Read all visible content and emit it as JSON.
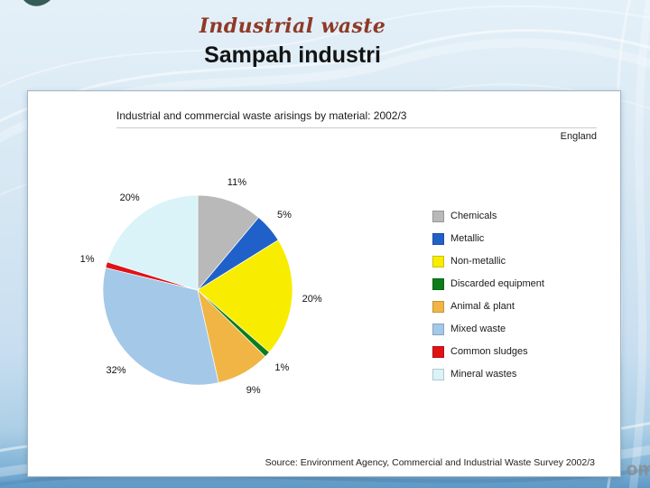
{
  "slide": {
    "title": "Industrial waste",
    "subtitle": "Sampah industri",
    "watermark": "om"
  },
  "chart_data": {
    "type": "pie",
    "title": "Industrial and commercial waste arisings by material: 2002/3",
    "region_label": "England",
    "source": "Source: Environment Agency, Commercial and Industrial Waste Survey 2002/3",
    "legend_position": "right",
    "start_angle_deg": -90,
    "direction": "clockwise",
    "slices": [
      {
        "label": "Chemicals",
        "value": 11,
        "pct_label": "11%",
        "color": "#b9b9b9"
      },
      {
        "label": "Metallic",
        "value": 5,
        "pct_label": "5%",
        "color": "#2061c9"
      },
      {
        "label": "Non-metallic",
        "value": 20,
        "pct_label": "20%",
        "color": "#f8ec00"
      },
      {
        "label": "Discarded equipment",
        "value": 1,
        "pct_label": "1%",
        "color": "#0e7c1a"
      },
      {
        "label": "Animal & plant",
        "value": 9,
        "pct_label": "9%",
        "color": "#f0b545"
      },
      {
        "label": "Mixed waste",
        "value": 32,
        "pct_label": "32%",
        "color": "#a4c8e8"
      },
      {
        "label": "Common sludges",
        "value": 1,
        "pct_label": "1%",
        "color": "#e01217"
      },
      {
        "label": "Mineral wastes",
        "value": 20,
        "pct_label": "20%",
        "color": "#d9f3f9"
      }
    ]
  }
}
